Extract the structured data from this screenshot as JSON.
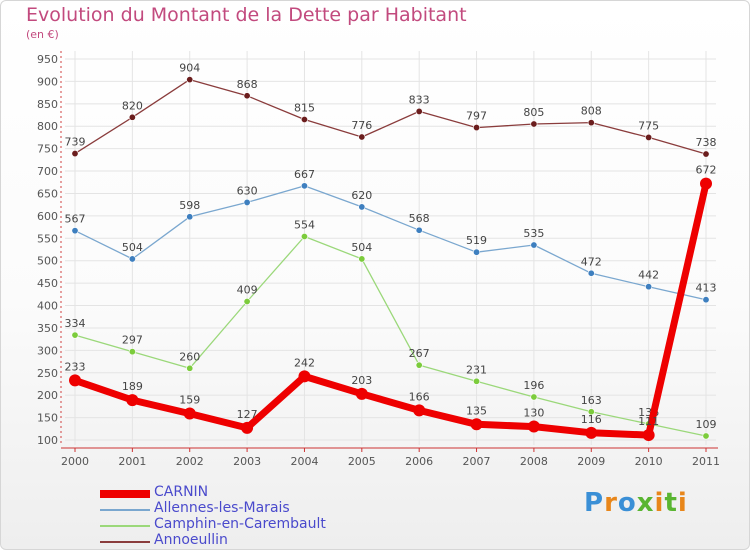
{
  "title": "Evolution du Montant de la Dette par Habitant",
  "subtitle": "(en €)",
  "logo": "Proxiti",
  "colors": {
    "title": "#c24a7e",
    "legend_text": "#4a4acc"
  },
  "chart_data": {
    "type": "line",
    "title": "Evolution du Montant de la Dette par Habitant",
    "ylabel": "(en €)",
    "xlabel": "",
    "categories": [
      "2000",
      "2001",
      "2002",
      "2003",
      "2004",
      "2005",
      "2006",
      "2007",
      "2008",
      "2009",
      "2010",
      "2011"
    ],
    "ylim": [
      100,
      950
    ],
    "yticks": [
      100,
      150,
      200,
      250,
      300,
      350,
      400,
      450,
      500,
      550,
      600,
      650,
      700,
      750,
      800,
      850,
      900,
      950
    ],
    "grid": true,
    "legend": "bottom-left",
    "series": [
      {
        "name": "CARNIN",
        "color": "#ee0000",
        "marker": "#ee0000",
        "width": 7,
        "radius": 6,
        "values": [
          233,
          189,
          159,
          127,
          242,
          203,
          166,
          135,
          130,
          116,
          111,
          672
        ],
        "labels": [
          "233",
          "189",
          "159",
          "127",
          "242",
          "203",
          "166",
          "135",
          "130",
          "116",
          "111",
          "672"
        ]
      },
      {
        "name": "Allennes-les-Marais",
        "color": "#7aa7cf",
        "marker": "#3e7fbf",
        "width": 1.3,
        "radius": 3.2,
        "values": [
          567,
          504,
          598,
          630,
          667,
          620,
          568,
          519,
          535,
          472,
          442,
          413
        ],
        "labels": [
          "567",
          "504",
          "598",
          "630",
          "667",
          "620",
          "568",
          "519",
          "535",
          "472",
          "442",
          "413"
        ]
      },
      {
        "name": "Camphin-en-Carembault",
        "color": "#9bd87a",
        "marker": "#7ccc3c",
        "width": 1.3,
        "radius": 3.2,
        "values": [
          334,
          297,
          260,
          409,
          554,
          504,
          267,
          231,
          196,
          163,
          136,
          109
        ],
        "labels": [
          "334",
          "297",
          "260",
          "409",
          "554",
          "504",
          "267",
          "231",
          "196",
          "163",
          "136",
          "109"
        ]
      },
      {
        "name": "Annoeullin",
        "color": "#8a3c3c",
        "marker": "#6b1d1d",
        "width": 1.3,
        "radius": 3.2,
        "values": [
          739,
          820,
          904,
          868,
          815,
          776,
          833,
          797,
          805,
          808,
          775,
          738
        ],
        "labels": [
          "739",
          "820",
          "904",
          "868",
          "815",
          "776",
          "833",
          "797",
          "805",
          "808",
          "775",
          "738"
        ]
      }
    ]
  }
}
